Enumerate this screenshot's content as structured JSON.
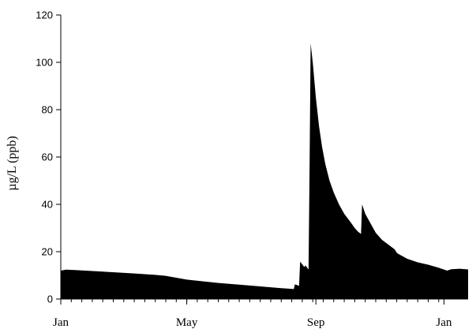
{
  "chart_data": {
    "type": "area",
    "title": "",
    "xlabel": "",
    "ylabel": "µg/L (ppb)",
    "xlim": [
      "Jan 1",
      "Jan 1 (next year)"
    ],
    "ylim": [
      0,
      120
    ],
    "yticks": [
      "0",
      "20",
      "40",
      "60",
      "80",
      "100",
      "120"
    ],
    "xtick_labels": [
      "Jan",
      "May",
      "Sep",
      "Jan"
    ],
    "xtick_days": [
      0,
      120,
      243,
      365
    ],
    "grid": false,
    "fill_color": "#000000",
    "x_unit": "day of year",
    "series": [
      {
        "name": "",
        "points": [
          [
            0,
            12.0
          ],
          [
            5,
            12.4
          ],
          [
            15,
            12.2
          ],
          [
            40,
            11.6
          ],
          [
            70,
            10.8
          ],
          [
            90,
            10.2
          ],
          [
            100,
            9.8
          ],
          [
            120,
            8.2
          ],
          [
            150,
            6.8
          ],
          [
            180,
            5.7
          ],
          [
            210,
            4.6
          ],
          [
            220,
            4.3
          ],
          [
            222,
            4.2
          ],
          [
            223,
            6.2
          ],
          [
            227,
            5.6
          ],
          [
            228,
            15.8
          ],
          [
            232,
            13.5
          ],
          [
            233,
            14.2
          ],
          [
            236,
            12.5
          ],
          [
            237,
            56.0
          ],
          [
            238,
            108.0
          ],
          [
            240,
            100.0
          ],
          [
            243,
            85.0
          ],
          [
            246,
            73.0
          ],
          [
            249,
            64.0
          ],
          [
            252,
            57.0
          ],
          [
            256,
            50.0
          ],
          [
            260,
            45.0
          ],
          [
            265,
            40.0
          ],
          [
            270,
            36.0
          ],
          [
            276,
            32.5
          ],
          [
            280,
            30.0
          ],
          [
            283,
            28.5
          ],
          [
            286,
            27.5
          ],
          [
            287,
            40.0
          ],
          [
            290,
            36.0
          ],
          [
            295,
            32.0
          ],
          [
            300,
            28.0
          ],
          [
            306,
            25.0
          ],
          [
            312,
            23.0
          ],
          [
            318,
            21.0
          ],
          [
            320,
            19.6
          ],
          [
            321,
            19.2
          ],
          [
            330,
            17.0
          ],
          [
            340,
            15.5
          ],
          [
            350,
            14.5
          ],
          [
            360,
            13.2
          ],
          [
            368,
            12.0
          ],
          [
            372,
            12.6
          ],
          [
            380,
            12.8
          ],
          [
            388,
            12.5
          ]
        ]
      }
    ]
  }
}
